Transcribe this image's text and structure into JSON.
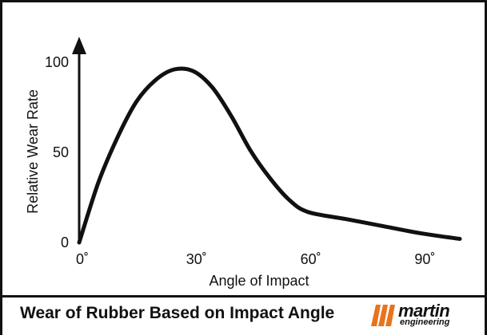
{
  "chart_data": {
    "type": "line",
    "title": "",
    "xlabel": "Angle of Impact",
    "ylabel": "Relative Wear Rate",
    "x_ticks": [
      {
        "value": 0,
        "label": "0˚"
      },
      {
        "value": 30,
        "label": "30˚"
      },
      {
        "value": 60,
        "label": "60˚"
      },
      {
        "value": 90,
        "label": "90˚"
      }
    ],
    "y_ticks": [
      {
        "value": 0,
        "label": "0"
      },
      {
        "value": 50,
        "label": "50"
      },
      {
        "value": 100,
        "label": "100"
      }
    ],
    "xlim": [
      0,
      100
    ],
    "ylim": [
      0,
      100
    ],
    "grid": false,
    "series": [
      {
        "name": "",
        "color": "#111111",
        "points": [
          [
            0,
            0
          ],
          [
            5,
            33
          ],
          [
            10,
            58
          ],
          [
            15,
            78
          ],
          [
            20,
            90
          ],
          [
            25,
            96
          ],
          [
            30,
            95
          ],
          [
            35,
            86
          ],
          [
            40,
            70
          ],
          [
            45,
            51
          ],
          [
            50,
            36
          ],
          [
            55,
            24
          ],
          [
            60,
            17
          ],
          [
            70,
            13
          ],
          [
            80,
            9
          ],
          [
            90,
            5
          ],
          [
            100,
            2
          ]
        ]
      }
    ]
  },
  "caption": {
    "title": "Wear of Rubber Based on Impact Angle",
    "logo_text": "martin",
    "logo_subtext": "engineering",
    "logo_color": "#e8741e"
  }
}
